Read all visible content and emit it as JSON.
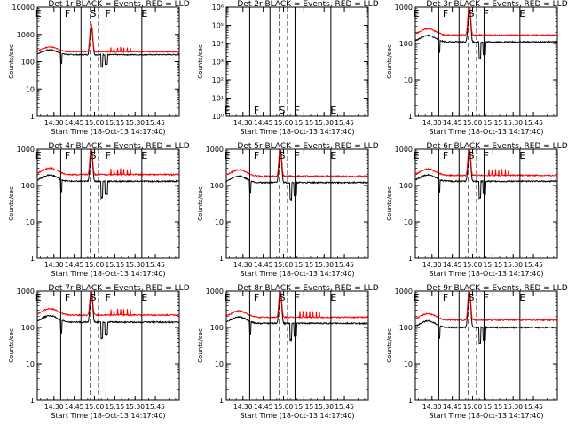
{
  "figure": {
    "ylabel": "Counts/sec",
    "xlabel": "Start Time (18-Oct-13 14:17:40)",
    "xticks": [
      "14:30",
      "14:45",
      "15:00",
      "15:15",
      "15:30",
      "15:45"
    ],
    "colors": {
      "events": "#000000",
      "lld": "#ff0000",
      "axes": "#000000",
      "background": "#ffffff"
    }
  },
  "chart_data": [
    {
      "type": "line",
      "title": "Det 1r BLACK = Events, RED = LLD",
      "log_y": true,
      "ylim": [
        1,
        10000
      ],
      "yticks": [
        "1",
        "10",
        "100",
        "1000",
        "10000"
      ],
      "events_level": 180,
      "lld_level": 230,
      "peak": 2000,
      "attenuator_spikes": true,
      "region_labels": [
        "E",
        "F",
        "S",
        "F",
        "E"
      ],
      "has_data": true
    },
    {
      "type": "line",
      "title": "Det 2r BLACK = Events, RED = LLD",
      "log_y": true,
      "ylim": [
        1,
        1000000
      ],
      "yticks": [
        "10⁰",
        "10¹",
        "10²",
        "10³",
        "10⁴",
        "10⁵",
        "10⁶"
      ],
      "region_labels": [
        "E",
        "F",
        "S",
        "F",
        "E"
      ],
      "has_data": false
    },
    {
      "type": "line",
      "title": "Det 3r BLACK = Events, RED = LLD",
      "log_y": true,
      "ylim": [
        1,
        1000
      ],
      "yticks": [
        "1",
        "10",
        "100",
        "1000"
      ],
      "events_level": 110,
      "lld_level": 170,
      "peak": 1000,
      "attenuator_spikes": false,
      "region_labels": [
        "E",
        "F",
        "S",
        "F",
        "E"
      ],
      "has_data": true
    },
    {
      "type": "line",
      "title": "Det 4r BLACK = Events, RED = LLD",
      "log_y": true,
      "ylim": [
        1,
        1000
      ],
      "yticks": [
        "1",
        "10",
        "100",
        "1000"
      ],
      "events_level": 130,
      "lld_level": 200,
      "peak": 1000,
      "attenuator_spikes": true,
      "region_labels": [
        "E",
        "F",
        "S",
        "F",
        "E"
      ],
      "has_data": true
    },
    {
      "type": "line",
      "title": "Det 5r BLACK = Events, RED = LLD",
      "log_y": true,
      "ylim": [
        1,
        1000
      ],
      "yticks": [
        "1",
        "10",
        "100",
        "1000"
      ],
      "events_level": 120,
      "lld_level": 180,
      "peak": 1000,
      "attenuator_spikes": false,
      "region_labels": [
        "E",
        "F",
        "S",
        "F",
        "E"
      ],
      "has_data": true
    },
    {
      "type": "line",
      "title": "Det 6r BLACK = Events, RED = LLD",
      "log_y": true,
      "ylim": [
        1,
        1000
      ],
      "yticks": [
        "1",
        "10",
        "100",
        "1000"
      ],
      "events_level": 130,
      "lld_level": 190,
      "peak": 1000,
      "attenuator_spikes": true,
      "region_labels": [
        "E",
        "F",
        "S",
        "F",
        "E"
      ],
      "has_data": true
    },
    {
      "type": "line",
      "title": "Det 7r BLACK = Events, RED = LLD",
      "log_y": true,
      "ylim": [
        1,
        1000
      ],
      "yticks": [
        "1",
        "10",
        "100",
        "1000"
      ],
      "events_level": 140,
      "lld_level": 220,
      "peak": 1000,
      "attenuator_spikes": true,
      "region_labels": [
        "E",
        "F",
        "S",
        "F",
        "E"
      ],
      "has_data": true
    },
    {
      "type": "line",
      "title": "Det 8r BLACK = Events, RED = LLD",
      "log_y": true,
      "ylim": [
        1,
        1000
      ],
      "yticks": [
        "1",
        "10",
        "100",
        "1000"
      ],
      "events_level": 130,
      "lld_level": 190,
      "peak": 1000,
      "attenuator_spikes": true,
      "region_labels": [
        "E",
        "F",
        "S",
        "F",
        "E"
      ],
      "has_data": true
    },
    {
      "type": "line",
      "title": "Det 9r BLACK = Events, RED = LLD",
      "log_y": true,
      "ylim": [
        1,
        1000
      ],
      "yticks": [
        "1",
        "10",
        "100",
        "1000"
      ],
      "events_level": 100,
      "lld_level": 160,
      "peak": 1000,
      "attenuator_spikes": false,
      "region_labels": [
        "E",
        "F",
        "S",
        "F",
        "E"
      ],
      "has_data": true
    }
  ]
}
